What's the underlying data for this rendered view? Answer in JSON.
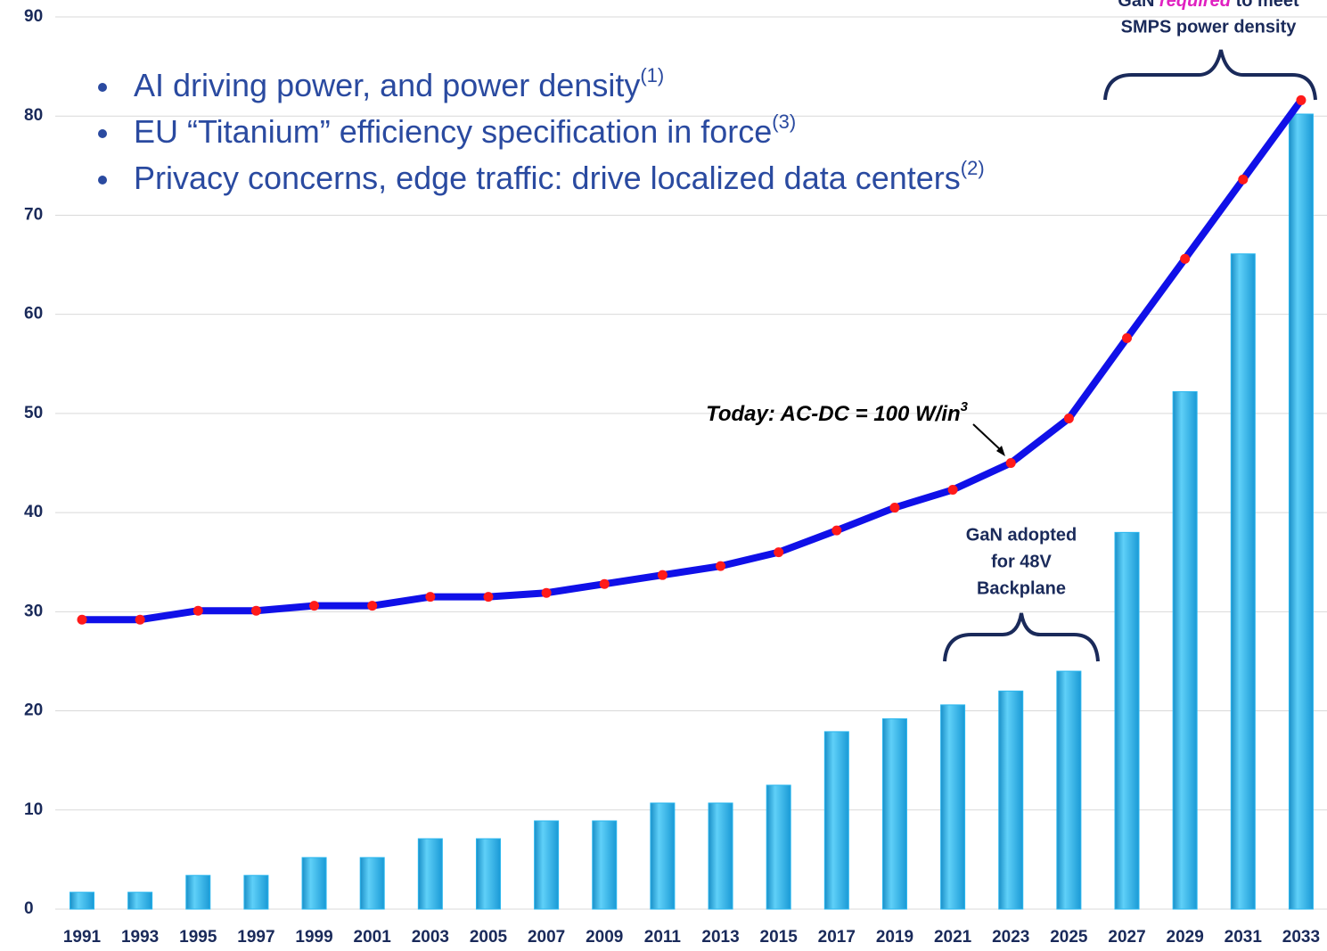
{
  "chart_data": {
    "type": "bar_line",
    "categories": [
      "1991",
      "1993",
      "1995",
      "1997",
      "1999",
      "2001",
      "2003",
      "2005",
      "2007",
      "2009",
      "2011",
      "2013",
      "2015",
      "2017",
      "2019",
      "2021",
      "2023",
      "2025",
      "2027",
      "2029",
      "2031",
      "2033"
    ],
    "series": [
      {
        "type": "bar",
        "color": "#29b6ee",
        "values": [
          1.7,
          1.7,
          3.4,
          3.4,
          5.2,
          5.2,
          7.1,
          7.1,
          8.9,
          8.9,
          10.7,
          10.7,
          12.5,
          17.9,
          19.2,
          20.6,
          22.0,
          24.0,
          38.0,
          52.2,
          66.1,
          80.2
        ]
      },
      {
        "type": "line",
        "color": "#1010e8",
        "marker_color": "#ff1a1a",
        "values": [
          29.2,
          29.2,
          30.1,
          30.1,
          30.6,
          30.6,
          31.5,
          31.5,
          31.9,
          32.8,
          33.7,
          34.6,
          36.0,
          38.2,
          40.5,
          42.3,
          45.0,
          49.5,
          57.6,
          65.6,
          73.6,
          81.6
        ]
      }
    ],
    "ylim": [
      0,
      90
    ],
    "yticks": [
      0,
      10,
      20,
      30,
      40,
      50,
      60,
      70,
      80,
      90
    ],
    "grid": true,
    "bullets": [
      {
        "text": "AI driving power, and power density",
        "note": "(1)"
      },
      {
        "text": "EU “Titanium” efficiency specification in force",
        "note": "(3)"
      },
      {
        "text": "Privacy concerns, edge traffic: drive localized data centers",
        "note": "(2)"
      }
    ],
    "annotations": {
      "today": {
        "text": "Today: AC-DC = 100 W/in",
        "sup": "3"
      },
      "adopted": [
        "GaN adopted",
        "for 48V",
        "Backplane"
      ],
      "required": {
        "pre": "GaN ",
        "em": "required",
        "post": " to meet",
        "line2": "SMPS power density"
      }
    }
  }
}
